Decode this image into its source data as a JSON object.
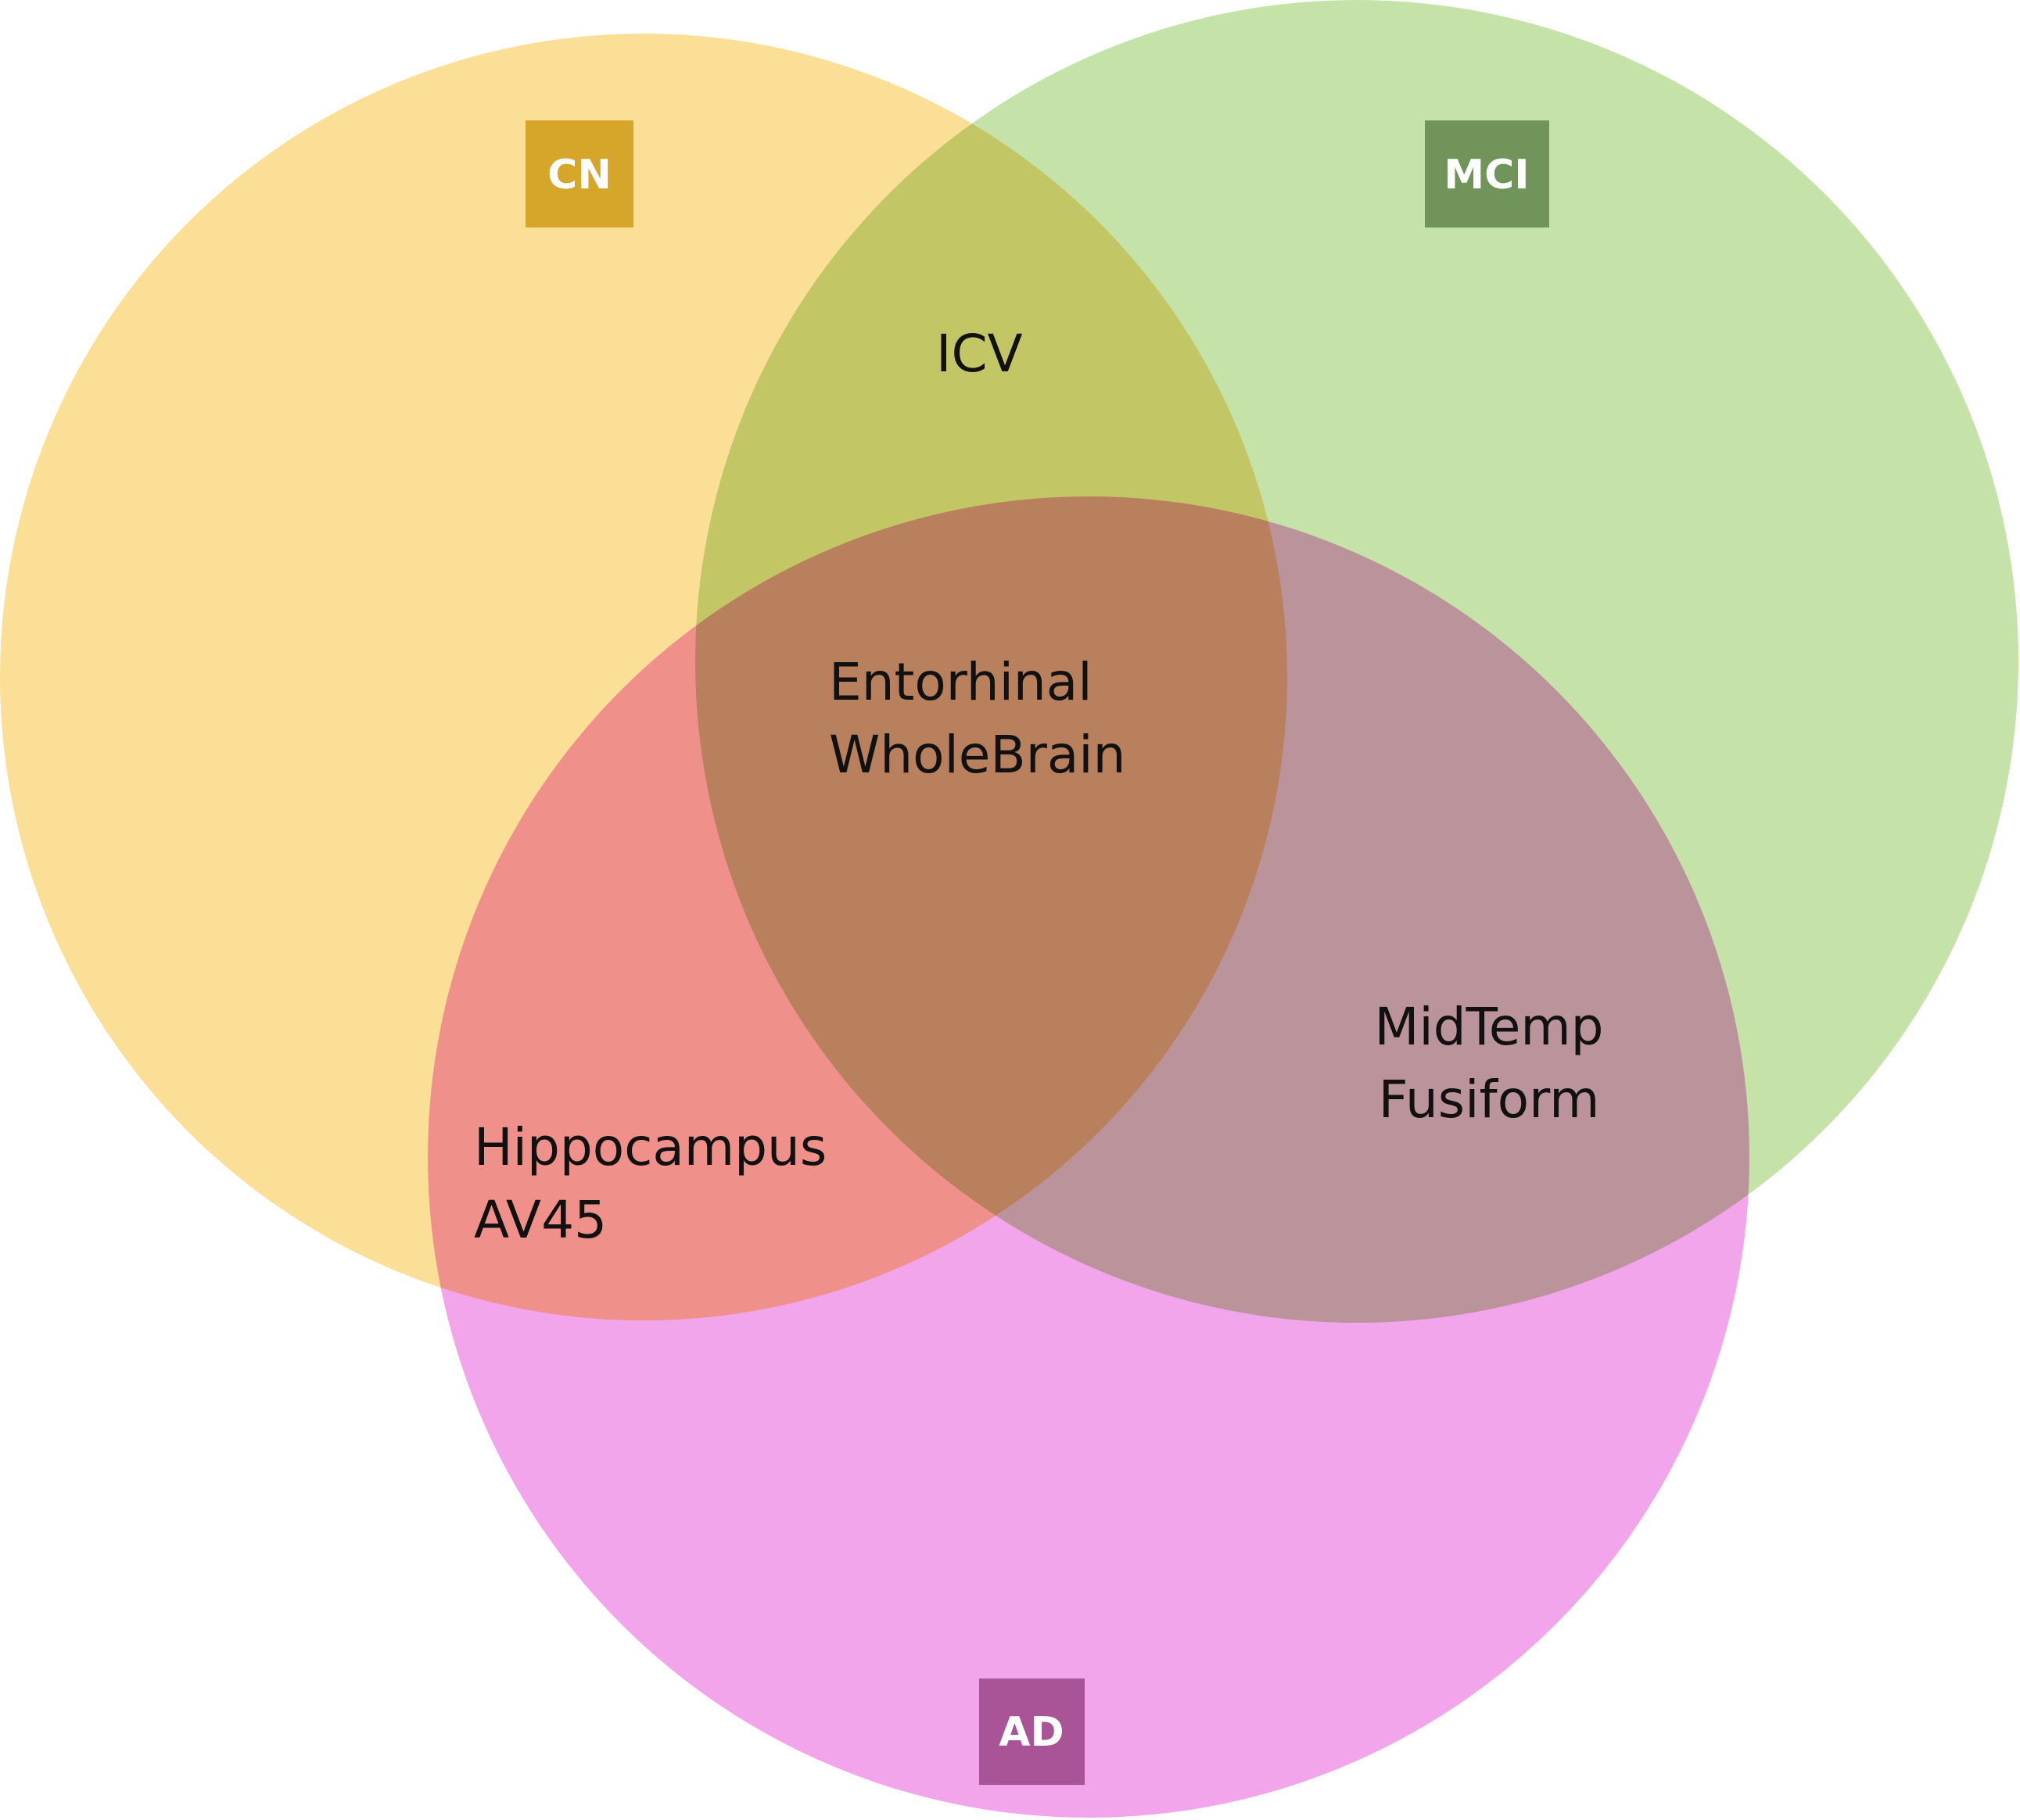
{
  "sets": [
    {
      "id": "cn",
      "label": "CN",
      "fill": "#FCDF96",
      "label_bg": "#D6A62A"
    },
    {
      "id": "mci",
      "label": "MCI",
      "fill": "#C5E3A9",
      "label_bg": "#71945A"
    },
    {
      "id": "ad",
      "label": "AD",
      "fill": "#F2A5EA",
      "label_bg": "#A85496"
    }
  ],
  "regions": {
    "cn_mci": [
      "ICV"
    ],
    "cn_mci_ad": [
      "Entorhinal",
      "WholeBrain"
    ],
    "mci_ad": [
      "MidTemp",
      "Fusiform"
    ],
    "cn_ad": [
      "Hippocampus",
      "AV45"
    ]
  }
}
